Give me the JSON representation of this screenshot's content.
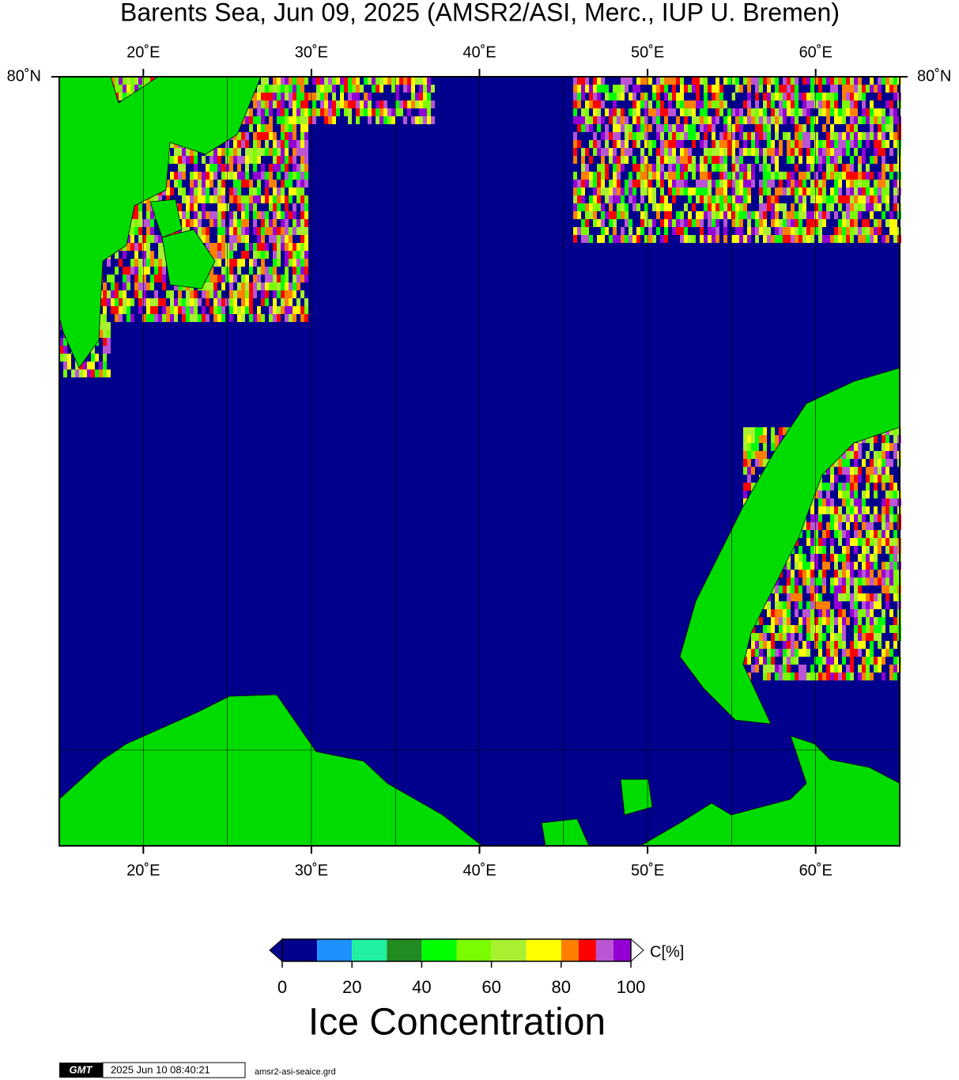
{
  "map": {
    "title": "Barents Sea, Jun 09, 2025 (AMSR2/ASI, Merc., IUP U. Bremen)",
    "lonlim": [
      15,
      65
    ],
    "lon_ticks": [
      {
        "value": 20,
        "label": "20˚E"
      },
      {
        "value": 30,
        "label": "30˚E"
      },
      {
        "value": 40,
        "label": "40˚E"
      },
      {
        "value": 50,
        "label": "50˚E"
      },
      {
        "value": 60,
        "label": "60˚E"
      }
    ],
    "lon_gridlines": [
      20,
      25,
      30,
      35,
      40,
      45,
      50,
      55,
      60
    ],
    "lat_tick": {
      "value": 80,
      "label": "80˚N"
    },
    "colorbar": {
      "bounds": [
        0,
        10,
        20,
        30,
        40,
        50,
        60,
        70,
        80,
        85,
        90,
        95,
        100
      ],
      "colors": [
        "#00008c",
        "#1e90ff",
        "#20f0a0",
        "#228b22",
        "#00ff00",
        "#7cfc00",
        "#a8f030",
        "#ffff00",
        "#ff8000",
        "#ff0000",
        "#ba55d3",
        "#9400d3"
      ],
      "ticks": [
        0,
        20,
        40,
        60,
        80,
        100
      ],
      "unit_label": "C[%]",
      "title": "Ice Concentration"
    },
    "footer": {
      "logo": "GMT",
      "timestamp": "2025 Jun 10 08:40:21",
      "file": "amsr2-asi-seaice.grd"
    }
  }
}
